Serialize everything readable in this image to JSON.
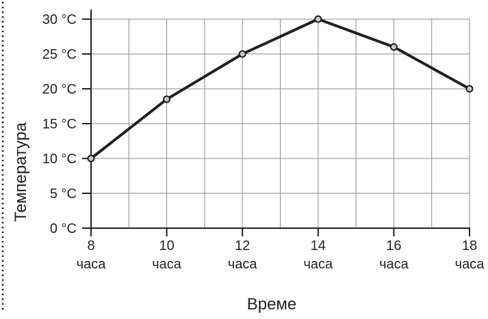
{
  "chart_data": {
    "type": "line",
    "title": "",
    "xlabel": "Време",
    "ylabel": "Температура",
    "x": [
      8,
      10,
      12,
      14,
      16,
      18
    ],
    "tick_labels_x": [
      {
        "number": "8",
        "unit": "часа"
      },
      {
        "number": "10",
        "unit": "часа"
      },
      {
        "number": "12",
        "unit": "часа"
      },
      {
        "number": "14",
        "unit": "часа"
      },
      {
        "number": "16",
        "unit": "часа"
      },
      {
        "number": "18",
        "unit": "часа"
      }
    ],
    "y_ticks": [
      0,
      5,
      10,
      15,
      20,
      25,
      30
    ],
    "tick_labels_y": [
      "0 °C",
      "5 °C",
      "10 °C",
      "15 °C",
      "20 °C",
      "25 °C",
      "30 °C"
    ],
    "xlim": [
      8,
      18
    ],
    "ylim": [
      0,
      30
    ],
    "grid": true,
    "series": [
      {
        "values": [
          10,
          18.5,
          25,
          30,
          26,
          20
        ]
      }
    ],
    "colors": {
      "line": "#231f20",
      "grid": "#8a8a8a",
      "marker_fill": "#c8c8c8",
      "border_dots": "#231f20"
    }
  }
}
